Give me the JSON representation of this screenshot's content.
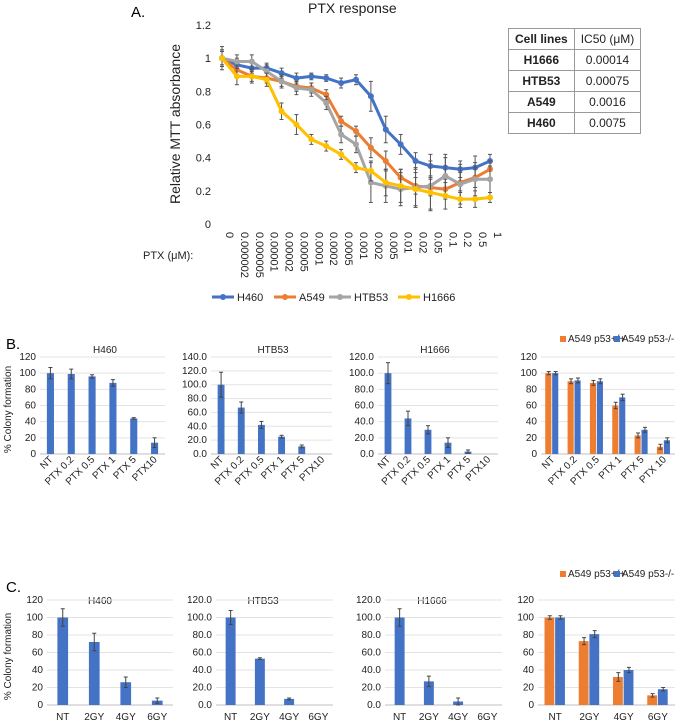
{
  "figure": {
    "panel_labels": {
      "a": "A.",
      "b": "B.",
      "c": "C."
    },
    "table": {
      "headers": [
        "Cell lines",
        "IC50 (μM)"
      ],
      "rows": [
        [
          "H1666",
          "0.00014"
        ],
        [
          "HTB53",
          "0.00075"
        ],
        [
          "A549",
          "0.0016"
        ],
        [
          "H460",
          "0.0075"
        ]
      ]
    }
  },
  "chart_data": [
    {
      "id": "A",
      "type": "line",
      "title": "PTX response",
      "ylabel": "Relative MTT absorbance",
      "xlabel": "PTX (μM):",
      "ylim": [
        0,
        1.2
      ],
      "yticks": [
        "0",
        "0.2",
        "0.4",
        "0.6",
        "0.8",
        "1",
        "1.2"
      ],
      "categories": [
        "0",
        "0.000002",
        "0.000005",
        "0.00001",
        "0.00002",
        "0.00005",
        "0.0001",
        "0.0002",
        "0.0005",
        "0.001",
        "0.002",
        "0.005",
        "0.01",
        "0.02",
        "0.05",
        "0.1",
        "0.2",
        "0.5",
        "1"
      ],
      "series": [
        {
          "name": "H460",
          "color": "#4472C4",
          "values": [
            1.0,
            0.96,
            0.94,
            0.94,
            0.91,
            0.88,
            0.89,
            0.88,
            0.85,
            0.87,
            0.77,
            0.57,
            0.48,
            0.38,
            0.35,
            0.34,
            0.33,
            0.34,
            0.38
          ],
          "errors": [
            0.05,
            0.04,
            0.03,
            0.03,
            0.03,
            0.03,
            0.02,
            0.02,
            0.03,
            0.03,
            0.09,
            0.08,
            0.06,
            0.05,
            0.07,
            0.06,
            0.05,
            0.07,
            0.04
          ]
        },
        {
          "name": "A549",
          "color": "#ED7D31",
          "values": [
            1.0,
            0.93,
            0.89,
            0.88,
            0.86,
            0.83,
            0.82,
            0.78,
            0.62,
            0.56,
            0.46,
            0.38,
            0.28,
            0.23,
            0.22,
            0.21,
            0.25,
            0.28,
            0.33
          ],
          "errors": [
            0.04,
            0.04,
            0.03,
            0.03,
            0.03,
            0.03,
            0.03,
            0.03,
            0.03,
            0.03,
            0.06,
            0.06,
            0.05,
            0.05,
            0.05,
            0.06,
            0.06,
            0.06,
            0.05
          ]
        },
        {
          "name": "HTB53",
          "color": "#A5A5A5",
          "values": [
            1.0,
            0.98,
            0.98,
            0.92,
            0.86,
            0.82,
            0.81,
            0.73,
            0.54,
            0.48,
            0.25,
            0.23,
            0.21,
            0.22,
            0.23,
            0.29,
            0.24,
            0.27,
            0.27
          ],
          "errors": [
            0.07,
            0.04,
            0.04,
            0.04,
            0.04,
            0.04,
            0.04,
            0.04,
            0.05,
            0.05,
            0.12,
            0.1,
            0.1,
            0.12,
            0.15,
            0.13,
            0.12,
            0.1,
            0.08
          ]
        },
        {
          "name": "H1666",
          "color": "#FFC000",
          "values": [
            1.0,
            0.89,
            0.89,
            0.87,
            0.68,
            0.6,
            0.51,
            0.47,
            0.42,
            0.34,
            0.32,
            0.25,
            0.23,
            0.21,
            0.19,
            0.17,
            0.15,
            0.15,
            0.16
          ],
          "errors": [
            0.05,
            0.05,
            0.04,
            0.04,
            0.05,
            0.06,
            0.03,
            0.03,
            0.03,
            0.03,
            0.06,
            0.08,
            0.1,
            0.1,
            0.1,
            0.08,
            0.05,
            0.05,
            0.03
          ]
        }
      ]
    },
    {
      "id": "B1",
      "type": "bar",
      "title": "H460",
      "ylabel": "% Colony formation",
      "ylim": [
        0,
        120
      ],
      "yticks": [
        "0",
        "20",
        "40",
        "60",
        "80",
        "100",
        "120"
      ],
      "categories": [
        "NT",
        "PTX 0.2",
        "PTX 0.5",
        "PTX 1",
        "PTX 5",
        "PTX10"
      ],
      "series": [
        {
          "name": "H460",
          "color": "#4472C4",
          "values": [
            100,
            99,
            96,
            88,
            44,
            14
          ],
          "errors": [
            7,
            6,
            2,
            4,
            1,
            6
          ]
        }
      ]
    },
    {
      "id": "B2",
      "type": "bar",
      "title": "HTB53",
      "ylim": [
        0,
        140
      ],
      "yticks": [
        "0.0",
        "20.0",
        "40.0",
        "60.0",
        "80.0",
        "100.0",
        "120.0",
        "140.0"
      ],
      "categories": [
        "NT",
        "PTX 0.2",
        "PTX 0.5",
        "PTX 1",
        "PTX 5",
        "PTX10"
      ],
      "series": [
        {
          "name": "HTB53",
          "color": "#4472C4",
          "values": [
            100,
            67,
            42,
            25,
            11,
            0
          ],
          "errors": [
            18,
            8,
            5,
            2,
            2,
            0
          ]
        }
      ]
    },
    {
      "id": "B3",
      "type": "bar",
      "title": "H1666",
      "ylim": [
        0,
        120
      ],
      "yticks": [
        "0.0",
        "20.0",
        "40.0",
        "60.0",
        "80.0",
        "100.0",
        "120.0"
      ],
      "categories": [
        "NT",
        "PTX 0.2",
        "PTX 0.5",
        "PTX 1",
        "PTX 5",
        "PTX10"
      ],
      "series": [
        {
          "name": "H1666",
          "color": "#4472C4",
          "values": [
            100,
            44,
            30,
            14,
            3,
            0
          ],
          "errors": [
            13,
            9,
            5,
            6,
            2,
            0
          ]
        }
      ]
    },
    {
      "id": "B4",
      "type": "bar",
      "title": "",
      "ylim": [
        0,
        120
      ],
      "yticks": [
        "0",
        "20",
        "40",
        "60",
        "80",
        "100",
        "120"
      ],
      "categories": [
        "NT",
        "PTX 0.2",
        "PTX 0.5",
        "PTX 1",
        "PTX 5",
        "PTX 10"
      ],
      "series": [
        {
          "name": "A549 p53+/+",
          "color": "#ED7D31",
          "values": [
            100,
            90,
            88,
            60,
            23,
            9
          ],
          "errors": [
            2,
            3,
            3,
            4,
            3,
            3
          ]
        },
        {
          "name": "A549 p53-/-",
          "color": "#4472C4",
          "values": [
            100,
            91,
            90,
            70,
            30,
            17
          ],
          "errors": [
            2,
            3,
            3,
            4,
            3,
            3
          ]
        }
      ]
    },
    {
      "id": "C1",
      "type": "bar",
      "title": "H460",
      "ylabel": "% Colony formation",
      "ylim": [
        0,
        120
      ],
      "yticks": [
        "0",
        "20",
        "40",
        "60",
        "80",
        "100",
        "120"
      ],
      "categories": [
        "NT",
        "2GY",
        "4GY",
        "6GY"
      ],
      "series": [
        {
          "name": "H460",
          "color": "#4472C4",
          "values": [
            100,
            72,
            26,
            5
          ],
          "errors": [
            10,
            10,
            6,
            3
          ]
        }
      ]
    },
    {
      "id": "C2",
      "type": "bar",
      "title": "HTB53",
      "ylim": [
        0,
        120
      ],
      "yticks": [
        "0.0",
        "20.0",
        "40.0",
        "60.0",
        "80.0",
        "100.0",
        "120.0"
      ],
      "categories": [
        "NT",
        "2GY",
        "4GY",
        "6GY"
      ],
      "series": [
        {
          "name": "HTB53",
          "color": "#4472C4",
          "values": [
            100,
            53,
            7,
            0
          ],
          "errors": [
            8,
            1,
            1,
            0
          ]
        }
      ]
    },
    {
      "id": "C3",
      "type": "bar",
      "title": "H1666",
      "ylim": [
        0,
        120
      ],
      "yticks": [
        "0.0",
        "20.0",
        "40.0",
        "60.0",
        "80.0",
        "100.0",
        "120.0"
      ],
      "categories": [
        "NT",
        "2GY",
        "4GY",
        "6GY"
      ],
      "series": [
        {
          "name": "H1666",
          "color": "#4472C4",
          "values": [
            100,
            27,
            4,
            0
          ],
          "errors": [
            10,
            6,
            4,
            0
          ]
        }
      ]
    },
    {
      "id": "C4",
      "type": "bar",
      "title": "",
      "ylim": [
        0,
        120
      ],
      "yticks": [
        "0",
        "20",
        "40",
        "60",
        "80",
        "100",
        "120"
      ],
      "categories": [
        "NT",
        "2GY",
        "4GY",
        "6GY"
      ],
      "series": [
        {
          "name": "A549 p53+/+",
          "color": "#ED7D31",
          "values": [
            100,
            73,
            32,
            11
          ],
          "errors": [
            2,
            4,
            5,
            2
          ]
        },
        {
          "name": "A549 p53-/-",
          "color": "#4472C4",
          "values": [
            100,
            81,
            40,
            18
          ],
          "errors": [
            2,
            4,
            3,
            2
          ]
        }
      ]
    }
  ]
}
